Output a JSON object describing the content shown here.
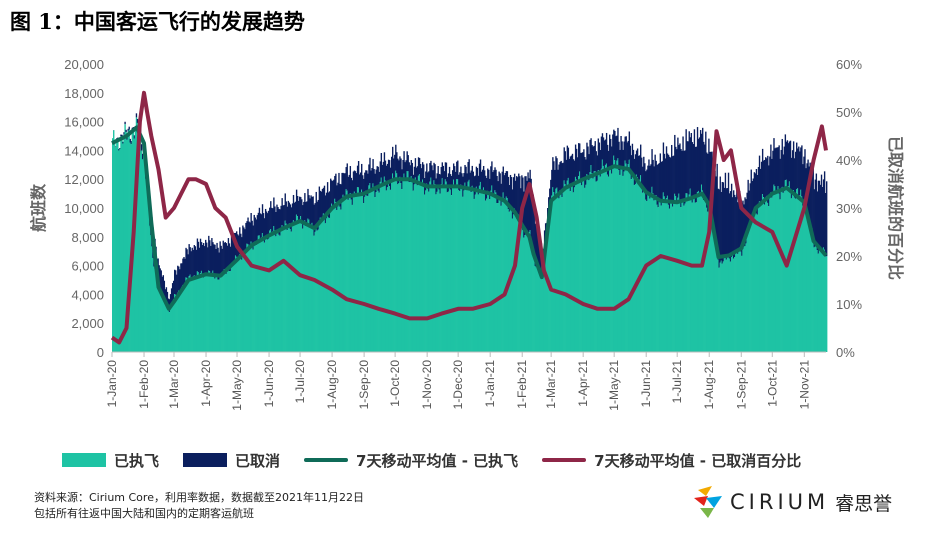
{
  "title": "图 1：中国客运飞行的发展趋势",
  "legend": {
    "operated": "已执飞",
    "cancelled": "已取消",
    "ma_operated": "7天移动平均值 - 已执飞",
    "ma_cancel_pct": "7天移动平均值 - 已取消百分比"
  },
  "notes": {
    "line1": "资料来源：Cirium Core，利用率数据，数据截至2021年11月22日",
    "line2": "包括所有往返中国大陆和国内的定期客运航班"
  },
  "logo": {
    "wordmark": "CIRIUM",
    "cn": "睿思誉",
    "name": "cirium-logo-icon"
  },
  "colors": {
    "operated": "#1ec3a4",
    "cancelled": "#0b1f5e",
    "ma_operated": "#0f6b58",
    "ma_cancel_pct": "#8e2647"
  },
  "chart_data": {
    "type": "area",
    "ylabel": "航班数",
    "y2label": "已取消航班的百分比",
    "ylim": [
      0,
      20000
    ],
    "y2lim": [
      0,
      60
    ],
    "yticks": [
      "0",
      "2,000",
      "4,000",
      "6,000",
      "8,000",
      "10,000",
      "12,000",
      "14,000",
      "16,000",
      "18,000",
      "20,000"
    ],
    "y2ticks": [
      "0%",
      "10%",
      "20%",
      "30%",
      "40%",
      "50%",
      "60%"
    ],
    "xticks": [
      "1-Jan-20",
      "1-Feb-20",
      "1-Mar-20",
      "1-Apr-20",
      "1-May-20",
      "1-Jun-20",
      "1-Jul-20",
      "1-Aug-20",
      "1-Sep-20",
      "1-Oct-20",
      "1-Nov-20",
      "1-Dec-20",
      "1-Jan-21",
      "1-Feb-21",
      "1-Mar-21",
      "1-Apr-21",
      "1-May-21",
      "1-Jun-21",
      "1-Jul-21",
      "1-Aug-21",
      "1-Sep-21",
      "1-Oct-21",
      "1-Nov-21"
    ],
    "series": [
      {
        "name": "已执飞",
        "x": [
          "1-Jan-20",
          "15-Jan-20",
          "25-Jan-20",
          "1-Feb-20",
          "8-Feb-20",
          "15-Feb-20",
          "25-Feb-20",
          "1-Mar-20",
          "15-Mar-20",
          "1-Apr-20",
          "15-Apr-20",
          "1-May-20",
          "15-May-20",
          "1-Jun-20",
          "15-Jun-20",
          "1-Jul-20",
          "15-Jul-20",
          "1-Aug-20",
          "15-Aug-20",
          "1-Sep-20",
          "15-Sep-20",
          "1-Oct-20",
          "15-Oct-20",
          "1-Nov-20",
          "15-Nov-20",
          "1-Dec-20",
          "15-Dec-20",
          "1-Jan-21",
          "15-Jan-21",
          "25-Jan-21",
          "1-Feb-21",
          "8-Feb-21",
          "12-Feb-21",
          "20-Feb-21",
          "1-Mar-21",
          "15-Mar-21",
          "1-Apr-21",
          "15-Apr-21",
          "1-May-21",
          "15-May-21",
          "1-Jun-21",
          "15-Jun-21",
          "1-Jul-21",
          "15-Jul-21",
          "25-Jul-21",
          "1-Aug-21",
          "10-Aug-21",
          "20-Aug-21",
          "1-Sep-21",
          "15-Sep-21",
          "1-Oct-21",
          "15-Oct-21",
          "1-Nov-21",
          "10-Nov-21",
          "22-Nov-21"
        ],
        "values": [
          14500,
          15000,
          15500,
          13500,
          7000,
          4200,
          2900,
          3800,
          5200,
          5500,
          5200,
          6500,
          7500,
          8200,
          8600,
          9200,
          8500,
          10000,
          10800,
          11000,
          11500,
          12000,
          12000,
          11500,
          11500,
          11500,
          11300,
          11000,
          10500,
          9500,
          8500,
          8000,
          6500,
          5000,
          10800,
          11500,
          12000,
          12500,
          13000,
          12700,
          11000,
          10500,
          10500,
          10800,
          11000,
          10000,
          6200,
          6600,
          7000,
          10000,
          11000,
          11500,
          10500,
          7500,
          6700
        ]
      },
      {
        "name": "已取消",
        "x": [
          "1-Jan-20",
          "15-Jan-20",
          "25-Jan-20",
          "1-Feb-20",
          "8-Feb-20",
          "15-Feb-20",
          "25-Feb-20",
          "1-Mar-20",
          "15-Mar-20",
          "1-Apr-20",
          "15-Apr-20",
          "1-May-20",
          "15-May-20",
          "1-Jun-20",
          "15-Jun-20",
          "1-Jul-20",
          "15-Jul-20",
          "1-Aug-20",
          "15-Aug-20",
          "1-Sep-20",
          "15-Sep-20",
          "1-Oct-20",
          "15-Oct-20",
          "1-Nov-20",
          "15-Nov-20",
          "1-Dec-20",
          "15-Dec-20",
          "1-Jan-21",
          "15-Jan-21",
          "25-Jan-21",
          "1-Feb-21",
          "8-Feb-21",
          "12-Feb-21",
          "20-Feb-21",
          "1-Mar-21",
          "15-Mar-21",
          "1-Apr-21",
          "15-Apr-21",
          "1-May-21",
          "15-May-21",
          "1-Jun-21",
          "15-Jun-21",
          "1-Jul-21",
          "15-Jul-21",
          "25-Jul-21",
          "1-Aug-21",
          "10-Aug-21",
          "20-Aug-21",
          "1-Sep-21",
          "15-Sep-21",
          "1-Oct-21",
          "15-Oct-21",
          "1-Nov-21",
          "10-Nov-21",
          "22-Nov-21"
        ],
        "values": [
          0,
          200,
          300,
          500,
          2000,
          1800,
          800,
          1600,
          2000,
          2200,
          2100,
          1700,
          1800,
          1800,
          1700,
          1500,
          2200,
          1800,
          1700,
          1600,
          1500,
          1700,
          1200,
          1300,
          1200,
          1200,
          1400,
          1600,
          1800,
          2500,
          3500,
          4200,
          3500,
          1800,
          2000,
          2200,
          2000,
          2000,
          2000,
          1800,
          2000,
          3000,
          3800,
          4100,
          4000,
          4200,
          5500,
          5000,
          3200,
          2800,
          3000,
          3000,
          3200,
          4500,
          5000
        ]
      },
      {
        "name": "7天移动平均值 - 已执飞",
        "x": [
          "1-Jan-20",
          "15-Jan-20",
          "25-Jan-20",
          "1-Feb-20",
          "8-Feb-20",
          "15-Feb-20",
          "25-Feb-20",
          "1-Mar-20",
          "15-Mar-20",
          "1-Apr-20",
          "15-Apr-20",
          "1-May-20",
          "15-May-20",
          "1-Jun-20",
          "15-Jun-20",
          "1-Jul-20",
          "15-Jul-20",
          "1-Aug-20",
          "15-Aug-20",
          "1-Sep-20",
          "15-Sep-20",
          "1-Oct-20",
          "15-Oct-20",
          "1-Nov-20",
          "15-Nov-20",
          "1-Dec-20",
          "15-Dec-20",
          "1-Jan-21",
          "15-Jan-21",
          "25-Jan-21",
          "1-Feb-21",
          "8-Feb-21",
          "12-Feb-21",
          "20-Feb-21",
          "1-Mar-21",
          "15-Mar-21",
          "1-Apr-21",
          "15-Apr-21",
          "1-May-21",
          "15-May-21",
          "1-Jun-21",
          "15-Jun-21",
          "1-Jul-21",
          "15-Jul-21",
          "25-Jul-21",
          "1-Aug-21",
          "10-Aug-21",
          "20-Aug-21",
          "1-Sep-21",
          "15-Sep-21",
          "1-Oct-21",
          "15-Oct-21",
          "1-Nov-21",
          "10-Nov-21",
          "22-Nov-21"
        ],
        "values": [
          14500,
          15000,
          15600,
          14500,
          9000,
          4500,
          3000,
          3500,
          5000,
          5400,
          5300,
          6400,
          7400,
          8100,
          8600,
          9100,
          8600,
          10000,
          10800,
          11000,
          11500,
          12000,
          12000,
          11500,
          11500,
          11500,
          11300,
          11000,
          10500,
          9700,
          8800,
          8000,
          6800,
          5200,
          10500,
          11400,
          12000,
          12400,
          12900,
          12700,
          11100,
          10500,
          10400,
          10700,
          11000,
          10200,
          6600,
          6700,
          7200,
          10000,
          11000,
          11400,
          10400,
          7700,
          6700
        ]
      },
      {
        "name": "7天移动平均值 - 已取消百分比",
        "axis": "y2",
        "x": [
          "1-Jan-20",
          "8-Jan-20",
          "15-Jan-20",
          "22-Jan-20",
          "28-Jan-20",
          "1-Feb-20",
          "4-Feb-20",
          "8-Feb-20",
          "15-Feb-20",
          "22-Feb-20",
          "1-Mar-20",
          "8-Mar-20",
          "15-Mar-20",
          "22-Mar-20",
          "1-Apr-20",
          "10-Apr-20",
          "20-Apr-20",
          "1-May-20",
          "15-May-20",
          "1-Jun-20",
          "15-Jun-20",
          "1-Jul-20",
          "15-Jul-20",
          "1-Aug-20",
          "15-Aug-20",
          "1-Sep-20",
          "15-Sep-20",
          "1-Oct-20",
          "15-Oct-20",
          "1-Nov-20",
          "15-Nov-20",
          "1-Dec-20",
          "15-Dec-20",
          "1-Jan-21",
          "15-Jan-21",
          "25-Jan-21",
          "1-Feb-21",
          "8-Feb-21",
          "15-Feb-21",
          "22-Feb-21",
          "1-Mar-21",
          "15-Mar-21",
          "1-Apr-21",
          "15-Apr-21",
          "1-May-21",
          "15-May-21",
          "1-Jun-21",
          "15-Jun-21",
          "1-Jul-21",
          "15-Jul-21",
          "25-Jul-21",
          "1-Aug-21",
          "8-Aug-21",
          "15-Aug-21",
          "22-Aug-21",
          "1-Sep-21",
          "15-Sep-21",
          "1-Oct-21",
          "15-Oct-21",
          "1-Nov-21",
          "10-Nov-21",
          "18-Nov-21",
          "22-Nov-21"
        ],
        "values": [
          3,
          2,
          5,
          25,
          48,
          54,
          50,
          45,
          38,
          28,
          30,
          33,
          36,
          36,
          35,
          30,
          28,
          22,
          18,
          17,
          19,
          16,
          15,
          13,
          11,
          10,
          9,
          8,
          7,
          7,
          8,
          9,
          9,
          10,
          12,
          18,
          30,
          35,
          28,
          17,
          13,
          12,
          10,
          9,
          9,
          11,
          18,
          20,
          19,
          18,
          18,
          25,
          46,
          40,
          42,
          30,
          27,
          25,
          18,
          30,
          40,
          47,
          42
        ]
      }
    ]
  }
}
